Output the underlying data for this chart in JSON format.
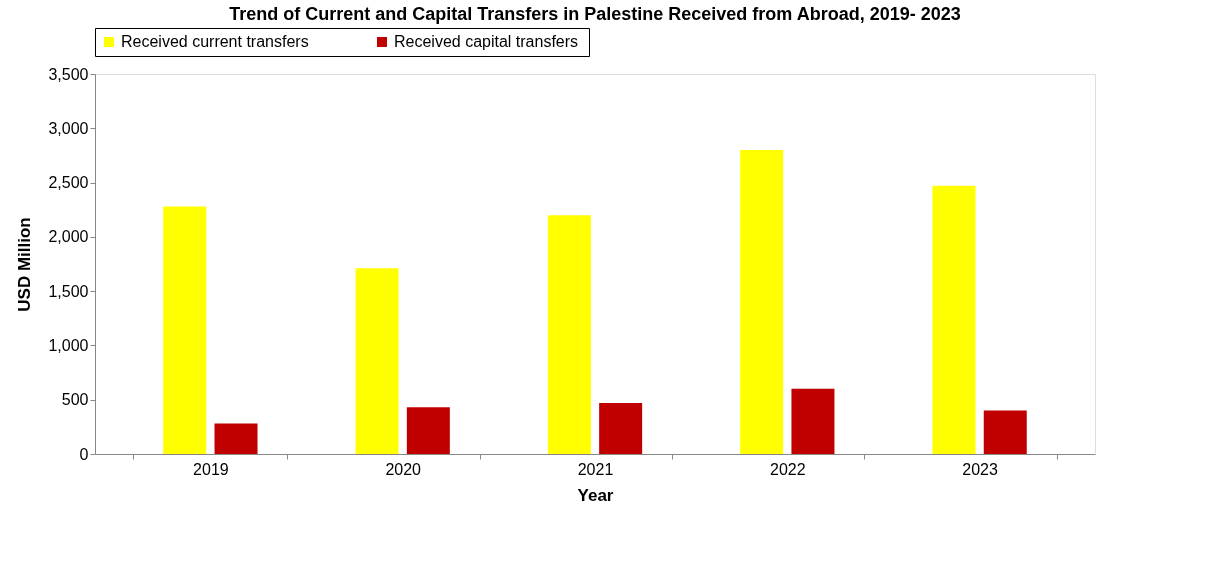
{
  "chart_data": {
    "type": "bar",
    "title": "Trend of Current and Capital Transfers in Palestine Received from Abroad, 2019- 2023",
    "xlabel": "Year",
    "ylabel": "USD Million",
    "categories": [
      "2019",
      "2020",
      "2021",
      "2022",
      "2023"
    ],
    "series": [
      {
        "name": "Received current  transfers",
        "color": "#ffff00",
        "values": [
          2280,
          1710,
          2200,
          2800,
          2470
        ]
      },
      {
        "name": "Received  capital transfers",
        "color": "#c00000",
        "values": [
          280,
          430,
          470,
          600,
          400
        ]
      }
    ],
    "ylim": [
      0,
      3500
    ],
    "yticks": [
      {
        "value": 0,
        "label": "0"
      },
      {
        "value": 500,
        "label": "500"
      },
      {
        "value": 1000,
        "label": "1,000"
      },
      {
        "value": 1500,
        "label": "1,500"
      },
      {
        "value": 2000,
        "label": "2,000"
      },
      {
        "value": 2500,
        "label": "2,500"
      },
      {
        "value": 3000,
        "label": "3,000"
      },
      {
        "value": 3500,
        "label": "3,500"
      }
    ],
    "grid": false,
    "legend": "top"
  }
}
